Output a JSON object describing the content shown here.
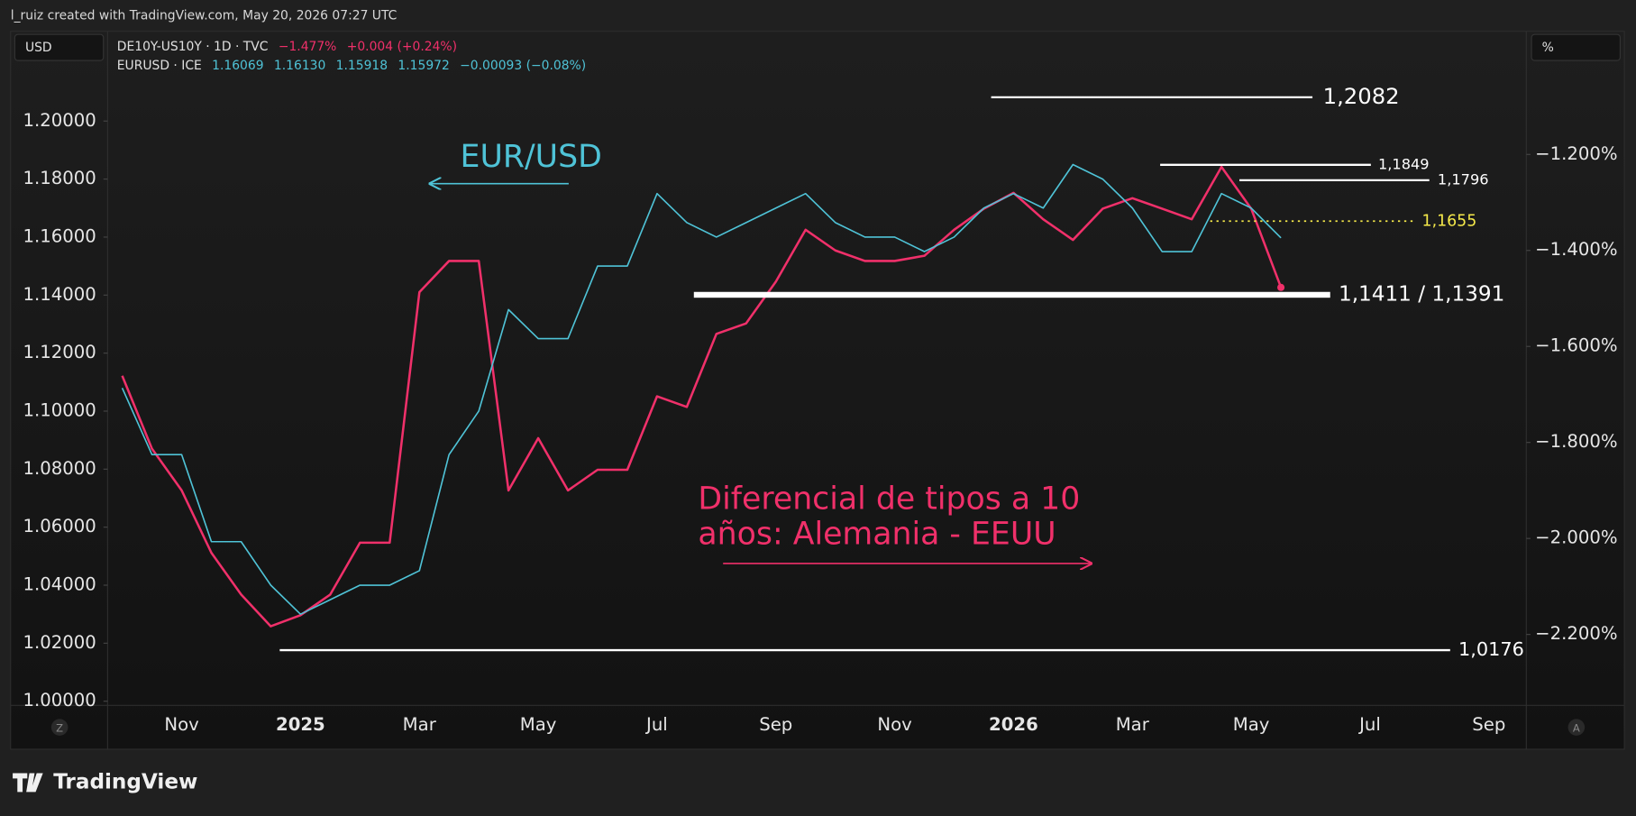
{
  "header": "l_ruiz created with TradingView.com, May 20, 2026 07:27 UTC",
  "currency_left": "USD",
  "currency_right": "%",
  "buttons": [
    "Z",
    "A"
  ],
  "logo": "TradingView",
  "legend": [
    {
      "last": "−1.477%",
      "change": "+0.004 (+0.24%)"
    },
    {
      "open": "1.16069",
      "high": "1.16130",
      "low": "1.15918",
      "close": "1.15972",
      "change": "−0.00093 (−0.08%)"
    }
  ],
  "chart_data": {
    "type": "line",
    "categories": [
      null,
      null,
      "Nov",
      null,
      null,
      null,
      "2025",
      null,
      null,
      null,
      "Mar",
      null,
      null,
      null,
      "May",
      null,
      null,
      null,
      "Jul",
      null,
      null,
      null,
      "Sep",
      null,
      null,
      null,
      "Nov",
      null,
      null,
      null,
      "2026",
      null,
      null,
      null,
      "Mar",
      null,
      null,
      null,
      "May",
      null,
      null,
      null,
      "Jul",
      null,
      null,
      null,
      "Sep",
      null
    ],
    "series": [
      {
        "name": "DE10Y-US10Y · 1D · TVC",
        "color": "#f0306a",
        "axis": "y2",
        "values": [
          -1.661,
          -1.813,
          -1.9,
          -2.03,
          -2.117,
          -2.183,
          -2.16,
          -2.117,
          -2.009,
          -2.009,
          -1.487,
          -1.422,
          -1.422,
          -1.9,
          -1.791,
          -1.9,
          -1.857,
          -1.857,
          -1.704,
          -1.726,
          -1.574,
          -1.552,
          -1.465,
          -1.357,
          -1.4,
          -1.422,
          -1.422,
          -1.411,
          -1.357,
          -1.313,
          -1.28,
          -1.335,
          -1.378,
          -1.313,
          -1.291,
          -1.313,
          -1.335,
          -1.226,
          -1.313,
          -1.477,
          null,
          null,
          null,
          null,
          null,
          null,
          null,
          null
        ]
      },
      {
        "name": "EURUSD · ICE",
        "color": "#4fc3d7",
        "values": [
          1.108,
          1.085,
          1.085,
          1.055,
          1.055,
          1.04,
          1.03,
          1.035,
          1.04,
          1.04,
          1.045,
          1.085,
          1.1,
          1.135,
          1.125,
          1.125,
          1.15,
          1.15,
          1.175,
          1.165,
          1.16,
          1.165,
          1.17,
          1.175,
          1.165,
          1.16,
          1.16,
          1.155,
          1.16,
          1.17,
          1.175,
          1.17,
          1.185,
          1.18,
          1.17,
          1.155,
          1.155,
          1.175,
          1.17,
          1.1597,
          null,
          null,
          null,
          null,
          null,
          null,
          null,
          null
        ]
      }
    ],
    "ylim": [
      0.99856,
      1.23094
    ],
    "yticks": [
      {
        "value": 1.0,
        "label": "1.00000"
      },
      {
        "value": 1.02,
        "label": "1.02000"
      },
      {
        "value": 1.04,
        "label": "1.04000"
      },
      {
        "value": 1.06,
        "label": "1.06000"
      },
      {
        "value": 1.08,
        "label": "1.08000"
      },
      {
        "value": 1.1,
        "label": "1.10000"
      },
      {
        "value": 1.12,
        "label": "1.12000"
      },
      {
        "value": 1.14,
        "label": "1.14000"
      },
      {
        "value": 1.16,
        "label": "1.16000"
      },
      {
        "value": 1.18,
        "label": "1.18000"
      },
      {
        "value": 1.2,
        "label": "1.20000"
      }
    ],
    "y2lim": [
      -2.3478,
      -0.9435
    ],
    "y2ticks": [
      {
        "value": -1.2,
        "label": "−1.200%"
      },
      {
        "value": -1.4,
        "label": "−1.400%"
      },
      {
        "value": -1.6,
        "label": "−1.600%"
      },
      {
        "value": -1.8,
        "label": "−1.800%"
      },
      {
        "value": -2.0,
        "label": "−2.000%"
      },
      {
        "value": -2.2,
        "label": "−2.200%"
      }
    ],
    "grid": false,
    "annotations": [
      {
        "label": "1,2082",
        "values": [
          1.2082
        ],
        "color": "#ffffff"
      },
      {
        "label": "1,1849",
        "values": [
          1.1849
        ],
        "color": "#ffffff"
      },
      {
        "label": "1,1796",
        "values": [
          1.1796
        ],
        "color": "#ffffff"
      },
      {
        "label": "1,1655",
        "values": [
          1.1655
        ],
        "color": "#f5e94a",
        "style": "dotted"
      },
      {
        "label": "1,1411 / 1,1391",
        "values": [
          1.1411,
          1.1391
        ],
        "color": "#ffffff"
      },
      {
        "label": "1,0176",
        "values": [
          1.0176
        ],
        "color": "#ffffff"
      }
    ],
    "texts": [
      {
        "text": "EUR/USD",
        "color": "#4fc3d7"
      },
      {
        "text": "Diferencial de tipos a 10",
        "color": "#f0306a"
      },
      {
        "text": "años: Alemania - EEUU",
        "color": "#f0306a"
      }
    ]
  }
}
